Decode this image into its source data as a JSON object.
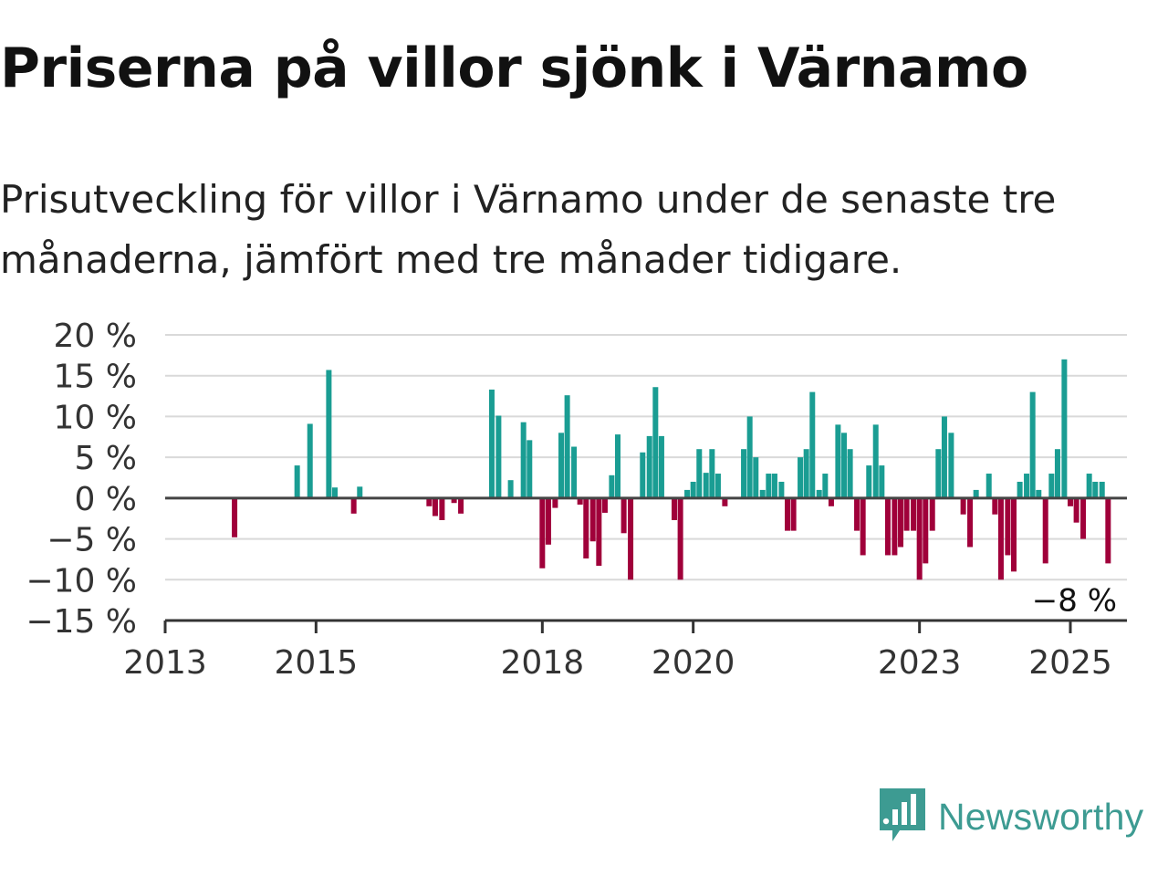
{
  "title": "Priserna på villor sjönk i Värnamo",
  "subtitle": "Prisutveckling för villor i Värnamo under de senaste tre månaderna, jämfört med tre månader tidigare.",
  "brand": "Newsworthy",
  "colors": {
    "positive": "#1a9d93",
    "negative": "#a0003a",
    "grid": "#d9d9d9",
    "axis": "#333333",
    "brand": "#3d9b92"
  },
  "chart_data": {
    "type": "bar",
    "x_unit": "year (fractional, month resolution)",
    "x_ticks": [
      {
        "value": 2013,
        "label": "2013"
      },
      {
        "value": 2015,
        "label": "2015"
      },
      {
        "value": 2018,
        "label": "2018"
      },
      {
        "value": 2020,
        "label": "2020"
      },
      {
        "value": 2023,
        "label": "2023"
      },
      {
        "value": 2025,
        "label": "2025"
      }
    ],
    "y_ticks": [
      {
        "value": 20,
        "label": "20 %"
      },
      {
        "value": 15,
        "label": "15 %"
      },
      {
        "value": 10,
        "label": "10 %"
      },
      {
        "value": 5,
        "label": "5 %"
      },
      {
        "value": 0,
        "label": "0 %"
      },
      {
        "value": -5,
        "label": "−5 %"
      },
      {
        "value": -10,
        "label": "−10 %"
      },
      {
        "value": -15,
        "label": "−15 %"
      }
    ],
    "ylim": [
      -15,
      20
    ],
    "xlim": [
      2013,
      2025.75
    ],
    "grid": true,
    "last_value_label": "−8 %",
    "points": [
      {
        "x": 2013.92,
        "y": -4.8
      },
      {
        "x": 2014.75,
        "y": 4.0
      },
      {
        "x": 2014.92,
        "y": 9.1
      },
      {
        "x": 2015.17,
        "y": 15.7
      },
      {
        "x": 2015.25,
        "y": 1.3
      },
      {
        "x": 2015.5,
        "y": -1.9
      },
      {
        "x": 2015.58,
        "y": 1.4
      },
      {
        "x": 2016.5,
        "y": -1.0
      },
      {
        "x": 2016.58,
        "y": -2.2
      },
      {
        "x": 2016.67,
        "y": -2.7
      },
      {
        "x": 2016.83,
        "y": -0.6
      },
      {
        "x": 2016.92,
        "y": -1.9
      },
      {
        "x": 2017.33,
        "y": 13.3
      },
      {
        "x": 2017.42,
        "y": 10.1
      },
      {
        "x": 2017.58,
        "y": 2.2
      },
      {
        "x": 2017.75,
        "y": 9.3
      },
      {
        "x": 2017.83,
        "y": 7.1
      },
      {
        "x": 2018.0,
        "y": -8.6
      },
      {
        "x": 2018.08,
        "y": -5.7
      },
      {
        "x": 2018.17,
        "y": -1.2
      },
      {
        "x": 2018.25,
        "y": 8.0
      },
      {
        "x": 2018.33,
        "y": 12.6
      },
      {
        "x": 2018.42,
        "y": 6.3
      },
      {
        "x": 2018.5,
        "y": -0.8
      },
      {
        "x": 2018.58,
        "y": -7.4
      },
      {
        "x": 2018.67,
        "y": -5.3
      },
      {
        "x": 2018.75,
        "y": -8.3
      },
      {
        "x": 2018.83,
        "y": -1.8
      },
      {
        "x": 2018.92,
        "y": 2.8
      },
      {
        "x": 2019.0,
        "y": 7.8
      },
      {
        "x": 2019.08,
        "y": -4.3
      },
      {
        "x": 2019.17,
        "y": -10.0
      },
      {
        "x": 2019.33,
        "y": 5.6
      },
      {
        "x": 2019.42,
        "y": 7.6
      },
      {
        "x": 2019.5,
        "y": 13.6
      },
      {
        "x": 2019.58,
        "y": 7.6
      },
      {
        "x": 2019.75,
        "y": -2.7
      },
      {
        "x": 2019.83,
        "y": -10.0
      },
      {
        "x": 2019.92,
        "y": 1.0
      },
      {
        "x": 2020.0,
        "y": 2.0
      },
      {
        "x": 2020.08,
        "y": 6.0
      },
      {
        "x": 2020.17,
        "y": 3.1
      },
      {
        "x": 2020.25,
        "y": 6.0
      },
      {
        "x": 2020.33,
        "y": 3.0
      },
      {
        "x": 2020.42,
        "y": -1.0
      },
      {
        "x": 2020.67,
        "y": 6.0
      },
      {
        "x": 2020.75,
        "y": 10.0
      },
      {
        "x": 2020.83,
        "y": 5.0
      },
      {
        "x": 2020.92,
        "y": 1.0
      },
      {
        "x": 2021.0,
        "y": 3.0
      },
      {
        "x": 2021.08,
        "y": 3.0
      },
      {
        "x": 2021.17,
        "y": 2.0
      },
      {
        "x": 2021.25,
        "y": -4.0
      },
      {
        "x": 2021.33,
        "y": -4.0
      },
      {
        "x": 2021.42,
        "y": 5.0
      },
      {
        "x": 2021.5,
        "y": 6.0
      },
      {
        "x": 2021.58,
        "y": 13.0
      },
      {
        "x": 2021.67,
        "y": 1.0
      },
      {
        "x": 2021.75,
        "y": 3.0
      },
      {
        "x": 2021.83,
        "y": -1.0
      },
      {
        "x": 2021.92,
        "y": 9.0
      },
      {
        "x": 2022.0,
        "y": 8.0
      },
      {
        "x": 2022.08,
        "y": 6.0
      },
      {
        "x": 2022.17,
        "y": -4.0
      },
      {
        "x": 2022.25,
        "y": -7.0
      },
      {
        "x": 2022.33,
        "y": 4.0
      },
      {
        "x": 2022.42,
        "y": 9.0
      },
      {
        "x": 2022.5,
        "y": 4.0
      },
      {
        "x": 2022.58,
        "y": -7.0
      },
      {
        "x": 2022.67,
        "y": -7.0
      },
      {
        "x": 2022.75,
        "y": -6.0
      },
      {
        "x": 2022.83,
        "y": -4.0
      },
      {
        "x": 2022.92,
        "y": -4.0
      },
      {
        "x": 2023.0,
        "y": -10.0
      },
      {
        "x": 2023.08,
        "y": -8.0
      },
      {
        "x": 2023.17,
        "y": -4.0
      },
      {
        "x": 2023.25,
        "y": 6.0
      },
      {
        "x": 2023.33,
        "y": 10.0
      },
      {
        "x": 2023.42,
        "y": 8.0
      },
      {
        "x": 2023.58,
        "y": -2.0
      },
      {
        "x": 2023.67,
        "y": -6.0
      },
      {
        "x": 2023.75,
        "y": 1.0
      },
      {
        "x": 2023.92,
        "y": 3.0
      },
      {
        "x": 2024.0,
        "y": -2.0
      },
      {
        "x": 2024.08,
        "y": -10.0
      },
      {
        "x": 2024.17,
        "y": -7.0
      },
      {
        "x": 2024.25,
        "y": -9.0
      },
      {
        "x": 2024.33,
        "y": 2.0
      },
      {
        "x": 2024.42,
        "y": 3.0
      },
      {
        "x": 2024.5,
        "y": 13.0
      },
      {
        "x": 2024.58,
        "y": 1.0
      },
      {
        "x": 2024.67,
        "y": -8.0
      },
      {
        "x": 2024.75,
        "y": 3.0
      },
      {
        "x": 2024.83,
        "y": 6.0
      },
      {
        "x": 2024.92,
        "y": 17.0
      },
      {
        "x": 2025.0,
        "y": -1.0
      },
      {
        "x": 2025.08,
        "y": -3.0
      },
      {
        "x": 2025.17,
        "y": -5.0
      },
      {
        "x": 2025.25,
        "y": 3.0
      },
      {
        "x": 2025.33,
        "y": 2.0
      },
      {
        "x": 2025.42,
        "y": 2.0
      },
      {
        "x": 2025.5,
        "y": -8.0
      }
    ]
  }
}
